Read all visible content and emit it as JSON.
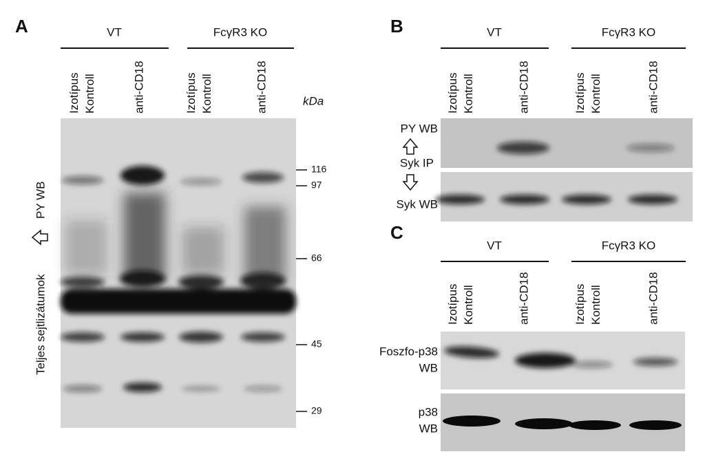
{
  "panels": [
    {
      "label": "A",
      "groups": [
        "VT",
        "FcγR3 KO"
      ],
      "lanes": [
        [
          "Izotípus",
          "Kontroll"
        ],
        [
          "anti-CD18"
        ],
        [
          "Izotípus",
          "Kontroll"
        ],
        [
          "anti-CD18"
        ]
      ],
      "unit": "kDa",
      "markers": [
        116,
        97,
        66,
        45,
        29
      ],
      "side_label": "Teljes sejtlizátumok",
      "probe": "PY WB"
    },
    {
      "label": "B",
      "groups": [
        "VT",
        "FcγR3 KO"
      ],
      "lanes": [
        [
          "Izotípus",
          "Kontroll"
        ],
        [
          "anti-CD18"
        ],
        [
          "Izotípus",
          "Kontroll"
        ],
        [
          "anti-CD18"
        ]
      ],
      "rows": [
        "PY WB",
        "Syk IP",
        "Syk WB"
      ]
    },
    {
      "label": "C",
      "groups": [
        "VT",
        "FcγR3 KO"
      ],
      "lanes": [
        [
          "Izotípus",
          "Kontroll"
        ],
        [
          "anti-CD18"
        ],
        [
          "Izotípus",
          "Kontroll"
        ],
        [
          "anti-CD18"
        ]
      ],
      "rows": [
        [
          "Foszfo-p38",
          "WB"
        ],
        [
          "p38",
          "WB"
        ]
      ]
    }
  ]
}
